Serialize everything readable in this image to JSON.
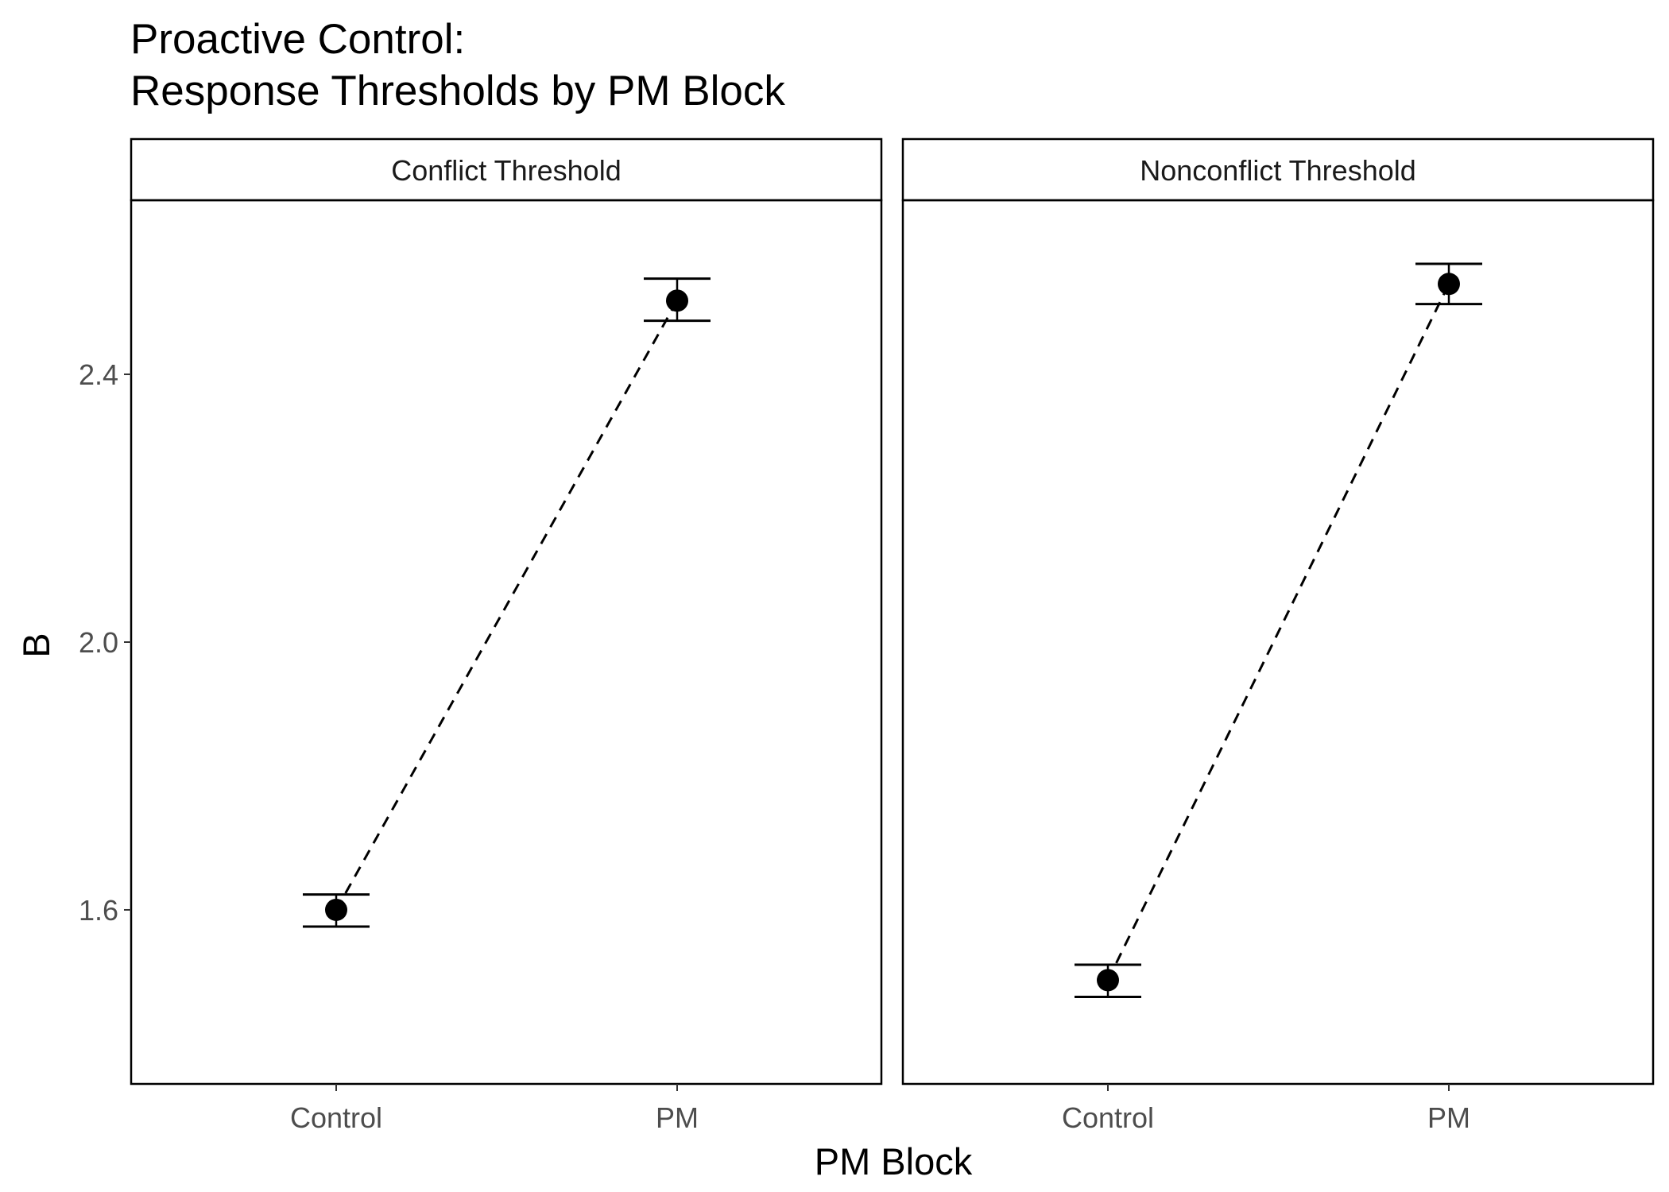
{
  "chart_data": {
    "type": "scatter",
    "title_line1": "Proactive Control:",
    "title_line2": "Response Thresholds by PM Block",
    "xlabel": "PM Block",
    "ylabel": "B",
    "categories": [
      "Control",
      "PM"
    ],
    "y_ticks": [
      "1.6",
      "2.0",
      "2.4"
    ],
    "ylim": [
      1.34,
      2.66
    ],
    "error_bars": true,
    "connector": "dashed",
    "grid": false,
    "panels": [
      {
        "label": "Conflict Threshold",
        "values": [
          1.6,
          2.51
        ],
        "error_low": [
          1.575,
          2.48
        ],
        "error_high": [
          1.623,
          2.543
        ]
      },
      {
        "label": "Nonconflict Threshold",
        "values": [
          1.495,
          2.535
        ],
        "error_low": [
          1.47,
          2.505
        ],
        "error_high": [
          1.518,
          2.565
        ]
      }
    ]
  }
}
